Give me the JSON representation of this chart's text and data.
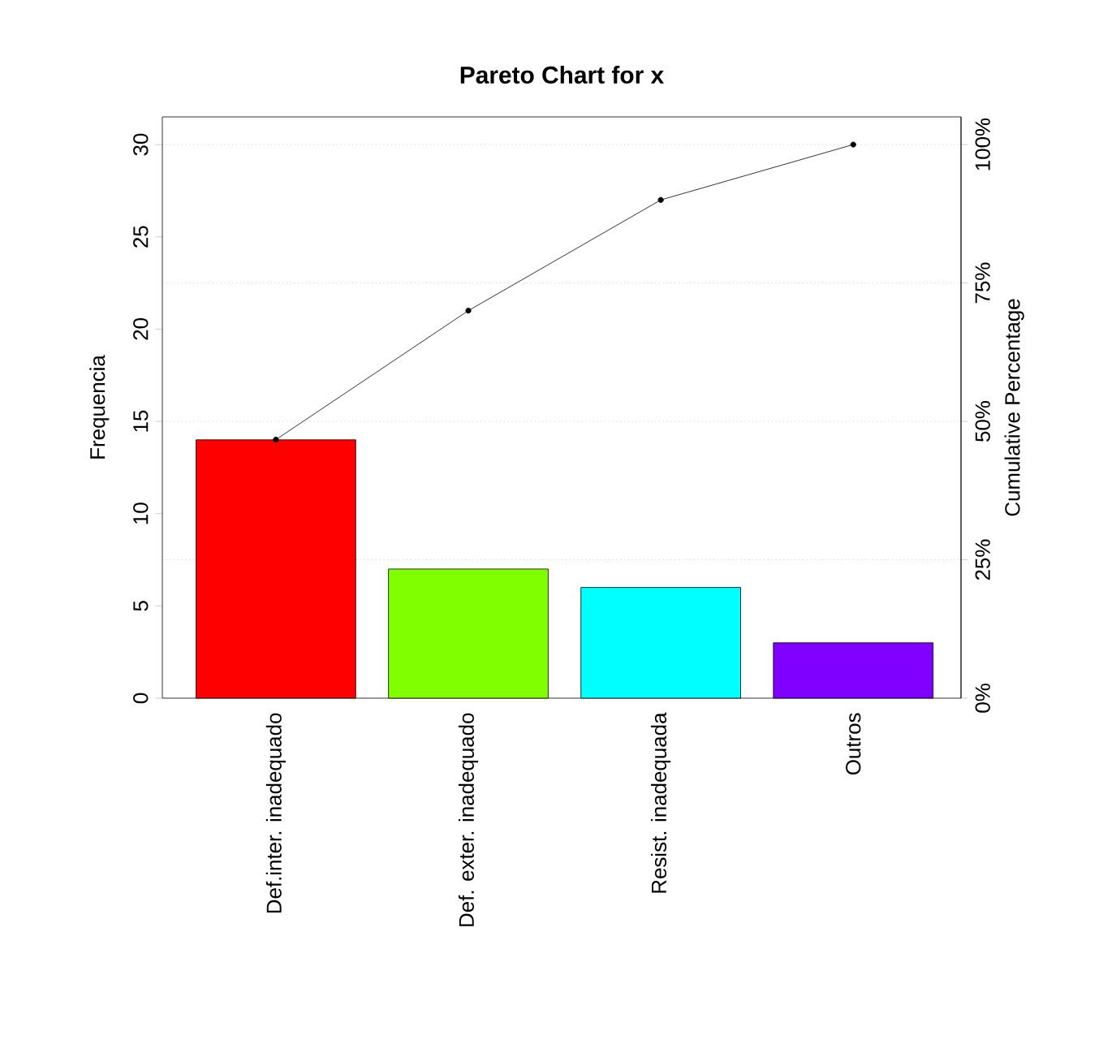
{
  "chart_data": {
    "type": "bar",
    "title": "Pareto Chart for x",
    "ylabel": "Frequencia",
    "y2label": "Cumulative Percentage",
    "categories": [
      "Def.inter. inadequado",
      "Def. exter. inadequado",
      "Resist. inadequada",
      "Outros"
    ],
    "series": [
      {
        "colors": [
          "#ff0000",
          "#80ff00",
          "#00ffff",
          "#8000ff"
        ],
        "values": [
          14,
          7,
          6,
          3
        ]
      },
      {
        "type": "line",
        "axis": "y2",
        "color": "#000000",
        "marker": "circle",
        "line_style": "solid",
        "values": [
          46.7,
          70,
          90,
          100
        ]
      }
    ],
    "ylim": [
      0,
      31.5
    ],
    "yticks": [
      0,
      5,
      10,
      15,
      20,
      25,
      30
    ],
    "y2lim": [
      0,
      105
    ],
    "y2ticks": [
      {
        "value": 0,
        "label": "0%"
      },
      {
        "value": 25,
        "label": "25%"
      },
      {
        "value": 50,
        "label": "50%"
      },
      {
        "value": 75,
        "label": "75%"
      },
      {
        "value": 100,
        "label": "100%"
      }
    ],
    "ref_lines": [
      {
        "axis": "y2",
        "value": 25,
        "color": "#b0b0b0",
        "line_style": "dotted"
      },
      {
        "axis": "y2",
        "value": 50,
        "color": "#b0b0b0",
        "line_style": "dotted"
      },
      {
        "axis": "y2",
        "value": 75,
        "color": "#b0b0b0",
        "line_style": "dotted"
      },
      {
        "axis": "y2",
        "value": 100,
        "color": "#b0b0b0",
        "line_style": "dotted"
      }
    ]
  }
}
